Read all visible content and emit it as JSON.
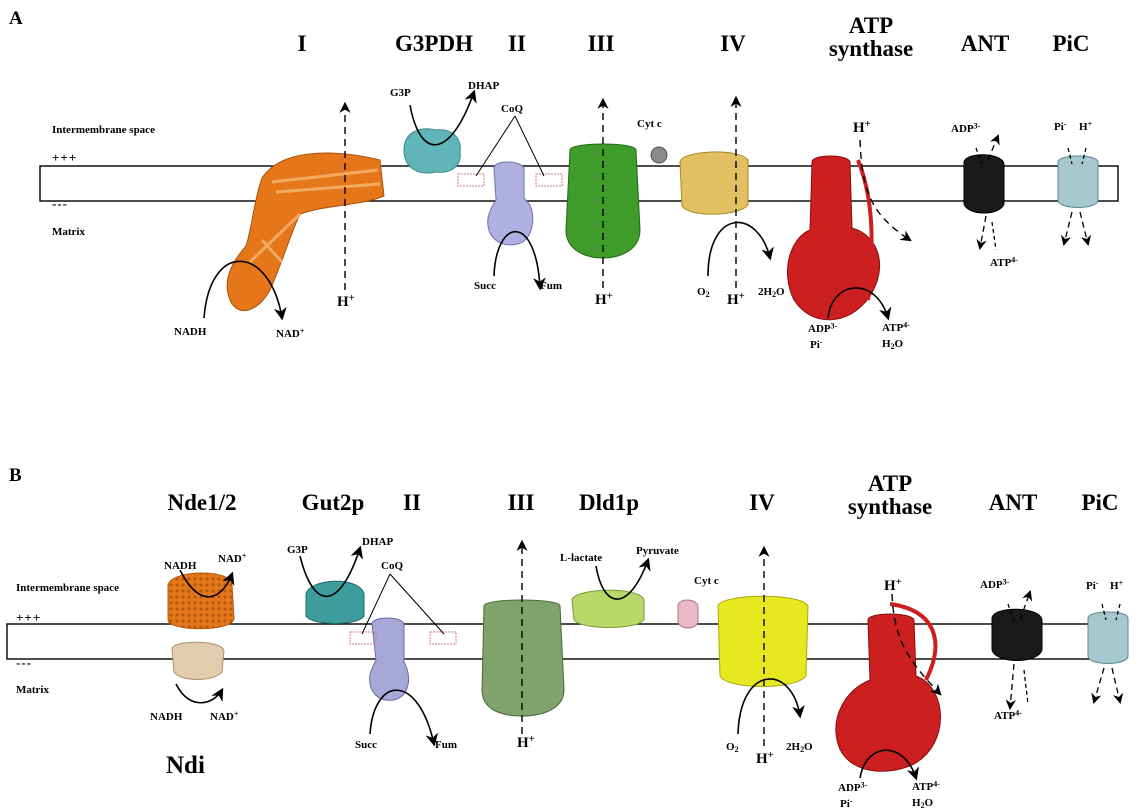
{
  "panel_a": {
    "letter": "A",
    "zones": {
      "intermembrane": "Intermembrane space",
      "matrix": "Matrix",
      "plus": "+++",
      "minus": "---"
    },
    "complexes": {
      "c1": "I",
      "g3pdh": "G3PDH",
      "c2": "II",
      "c3": "III",
      "c4": "IV",
      "atp_line1": "ATP",
      "atp_line2": "synthase",
      "ant": "ANT",
      "pic": "PiC"
    },
    "metabolites": {
      "nadh": "NADH",
      "nad_base": "NAD",
      "nad_sup": "+",
      "g3p": "G3P",
      "dhap": "DHAP",
      "coq": "CoQ",
      "succ": "Succ",
      "fum": "Fum",
      "cytc": "Cyt c",
      "o2_base": "O",
      "o2_sub": "2",
      "h2o_pre": "2H",
      "h2o_sub": "2",
      "h2o_post": "O",
      "adp_base": "ADP",
      "adp_sup": "3-",
      "pi_base": "Pi",
      "pi_sup": "-",
      "atp_base": "ATP",
      "atp_sup": "4-",
      "h2o2_base": "H",
      "h2o2_sub": "2",
      "h2o2_post": "O",
      "h_base": "H",
      "h_sup": "+"
    }
  },
  "panel_b": {
    "letter": "B",
    "zones": {
      "intermembrane": "Intermembrane space",
      "matrix": "Matrix",
      "plus": "+++",
      "minus": "---"
    },
    "complexes": {
      "nde": "Nde1/2",
      "gut2p": "Gut2p",
      "c2": "II",
      "c3": "III",
      "dld1p": "Dld1p",
      "c4": "IV",
      "atp_line1": "ATP",
      "atp_line2": "synthase",
      "ant": "ANT",
      "pic": "PiC",
      "ndi": "Ndi"
    },
    "metabolites": {
      "nadh": "NADH",
      "nad_base": "NAD",
      "nad_sup": "+",
      "g3p": "G3P",
      "dhap": "DHAP",
      "coq": "CoQ",
      "succ": "Succ",
      "fum": "Fum",
      "llactate": "L-lactate",
      "pyruvate": "Pyruvate",
      "cytc": "Cyt c",
      "o2_base": "O",
      "o2_sub": "2",
      "h2o_pre": "2H",
      "h2o_sub": "2",
      "h2o_post": "O",
      "adp_base": "ADP",
      "adp_sup": "3-",
      "pi_base": "Pi",
      "pi_sup": "-",
      "atp_base": "ATP",
      "atp_sup": "4-",
      "h2o2_base": "H",
      "h2o2_sub": "2",
      "h2o2_post": "O",
      "h_base": "H",
      "h_sup": "+"
    }
  },
  "colors": {
    "complex_I_orange": "#e6761a",
    "g3pdh_teal": "#5fb5b8",
    "complex_II_lavender": "#a8a8d8",
    "complex_III_green_a": "#3f9c2a",
    "complex_IV_gold": "#e0c060",
    "cyt_c_grey": "#8a8a8a",
    "atp_synthase_red": "#cc1f1f",
    "ant_black": "#1a1a1a",
    "pic_lightblue": "#a8c8cf",
    "nde_orange": "#e8801e",
    "ndi_tan": "#e2ccae",
    "gut2p_teal": "#3e9c9c",
    "complex_III_green_b": "#7fa36a",
    "dld1p_lime": "#b8d86a",
    "complex_IV_yellow": "#e8e820",
    "cyt_c_pink": "#e8b8c4",
    "coq_pink": "#d07a8a",
    "membrane_stroke": "#000000"
  }
}
